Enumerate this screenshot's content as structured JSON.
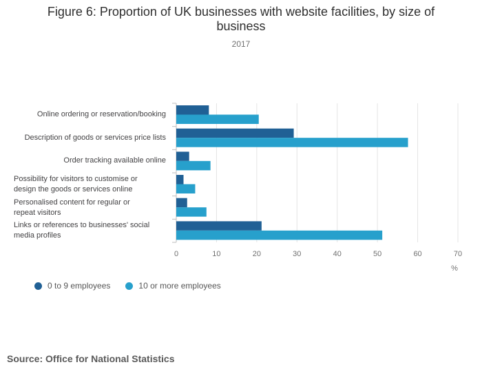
{
  "header": {
    "title": "Figure 6: Proportion of UK businesses with website facilities, by size of business",
    "subtitle": "2017"
  },
  "chart_data": {
    "type": "bar",
    "orientation": "horizontal",
    "title": "Figure 6: Proportion of UK businesses with website facilities, by size of business",
    "subtitle": "2017",
    "categories": [
      "Online ordering or reservation/booking",
      "Description of goods or services price lists",
      "Order tracking available online",
      "Possibility for visitors to customise or design the goods or services online",
      "Personalised content for regular or repeat visitors",
      "Links or references to businesses' social media profiles"
    ],
    "series": [
      {
        "name": "0 to 9 employees",
        "color": "#206095",
        "values": [
          8.1,
          29.2,
          3.2,
          1.8,
          2.7,
          21.2
        ]
      },
      {
        "name": "10 or more employees",
        "color": "#27a0cc",
        "values": [
          20.5,
          57.6,
          8.5,
          4.7,
          7.5,
          51.2
        ]
      }
    ],
    "xlim": [
      0,
      70
    ],
    "xticks": [
      "0",
      "10",
      "20",
      "30",
      "40",
      "50",
      "60",
      "70"
    ],
    "xlabel": "%",
    "ylabel": "",
    "grid": true,
    "legend_position": "bottom-left"
  },
  "legend": {
    "items": [
      {
        "label": "0 to 9 employees",
        "color": "#206095"
      },
      {
        "label": "10 or more employees",
        "color": "#27a0cc"
      }
    ]
  },
  "footer": {
    "source": "Source: Office for National Statistics"
  }
}
